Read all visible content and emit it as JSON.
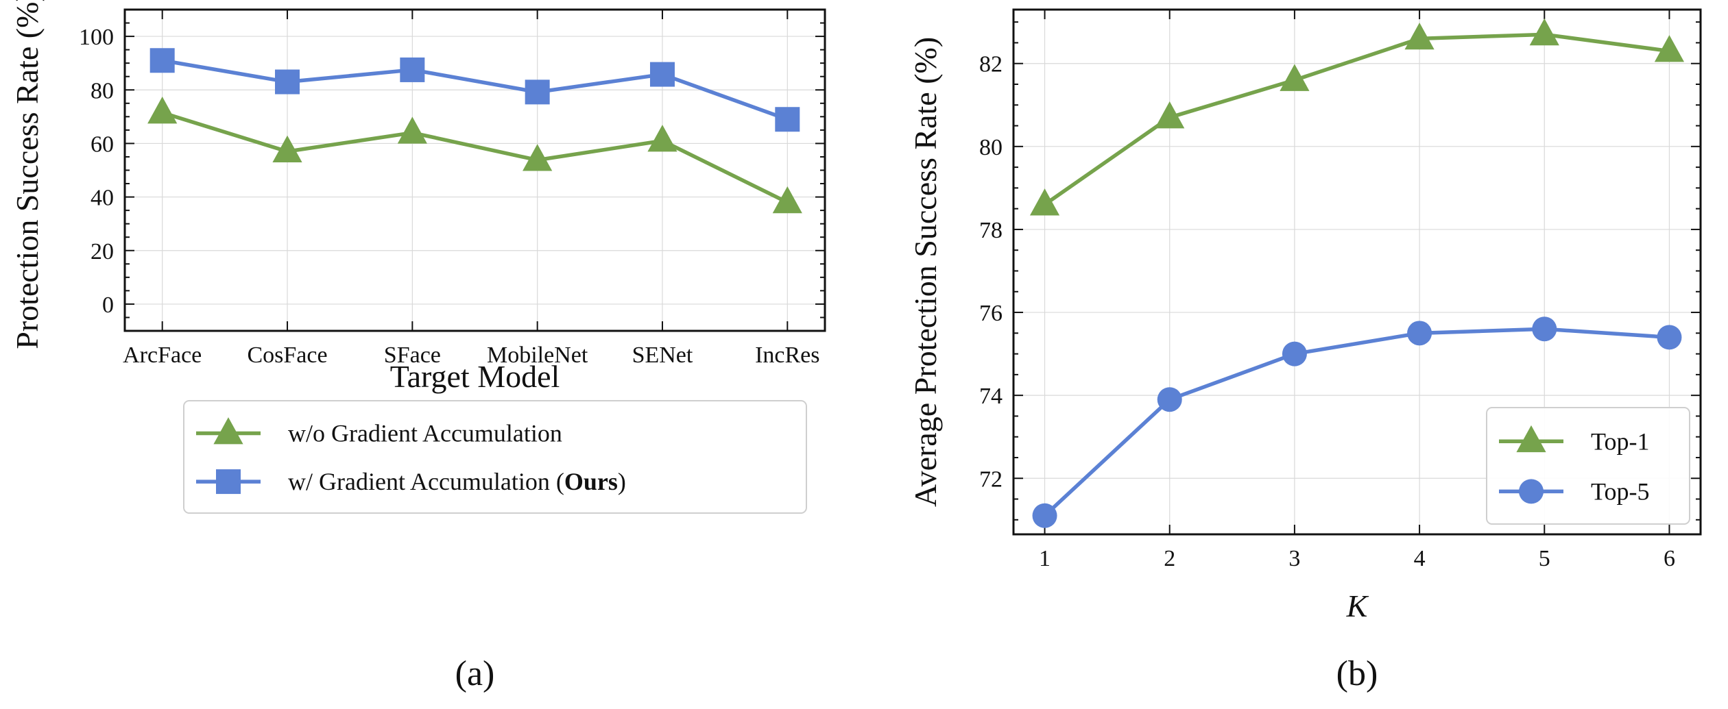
{
  "colors": {
    "green": "#76a34c",
    "blue": "#5b81d4"
  },
  "chart_data": [
    {
      "type": "line",
      "panel_label": "(a)",
      "xlabel": "Target Model",
      "ylabel": "Protection Success Rate (%)",
      "categories": [
        "ArcFace",
        "CosFace",
        "SFace",
        "MobileNet",
        "SENet",
        "IncRes"
      ],
      "ylim": [
        -10,
        110
      ],
      "yticks": [
        0,
        20,
        40,
        60,
        80,
        100
      ],
      "grid": true,
      "legend_position": "lower-left",
      "series": [
        {
          "name": "w/o Gradient Accumulation",
          "marker": "triangle",
          "color": "#76a34c",
          "values": [
            71.5,
            57.0,
            64.0,
            53.8,
            61.0,
            38.0
          ]
        },
        {
          "name": "w/ Gradient Accumulation (",
          "name_bold": "Ours",
          "name_suffix": ")",
          "marker": "square",
          "color": "#5b81d4",
          "values": [
            91.0,
            83.0,
            87.5,
            79.2,
            85.8,
            69.0
          ]
        }
      ]
    },
    {
      "type": "line",
      "panel_label": "(b)",
      "xlabel": "K",
      "ylabel": "Average Protection Success Rate (%)",
      "x": [
        1,
        2,
        3,
        4,
        5,
        6
      ],
      "xlim": [
        0.75,
        6.25
      ],
      "ylim": [
        70.65,
        83.3
      ],
      "yticks": [
        72,
        74,
        76,
        78,
        80,
        82
      ],
      "grid": true,
      "legend_position": "lower-right",
      "series": [
        {
          "name": "Top-1",
          "marker": "triangle",
          "color": "#76a34c",
          "values": [
            78.6,
            80.7,
            81.6,
            82.6,
            82.7,
            82.3
          ]
        },
        {
          "name": "Top-5",
          "marker": "circle",
          "color": "#5b81d4",
          "values": [
            71.1,
            73.9,
            75.0,
            75.5,
            75.6,
            75.4
          ]
        }
      ]
    }
  ]
}
